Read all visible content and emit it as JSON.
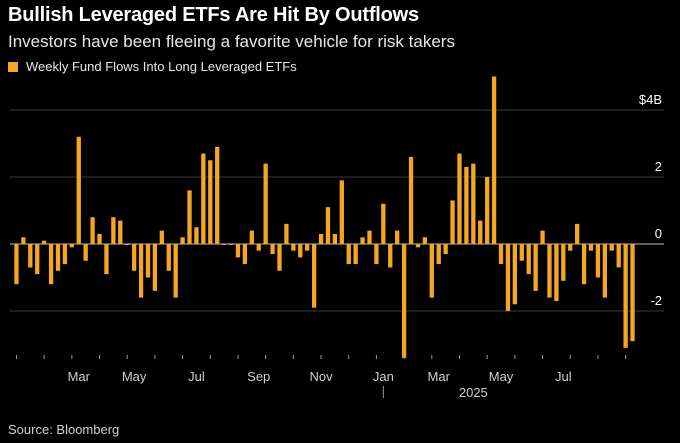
{
  "header": {
    "title": "Bullish Leveraged ETFs Are Hit By Outflows",
    "subtitle": "Investors have been fleeing a favorite vehicle for risk takers"
  },
  "footer": {
    "source": "Bloomberg",
    "source_label": "Source: Bloomberg"
  },
  "colors": {
    "bar": "#f5a623",
    "background": "#000000",
    "grid": "#3a3a3a",
    "axis": "#9a9a9a"
  },
  "chart_data": {
    "type": "bar",
    "title": "Bullish Leveraged ETFs Are Hit By Outflows",
    "subtitle": "Investors have been fleeing a favorite vehicle for risk takers",
    "legend": "top-left",
    "series": [
      {
        "name": "Weekly Fund Flows Into Long Leveraged ETFs",
        "values": [
          -1.2,
          0.2,
          -0.7,
          -0.9,
          0.1,
          -1.2,
          -0.8,
          -0.6,
          -0.1,
          3.2,
          -0.5,
          0.8,
          0.3,
          -0.9,
          0.8,
          0.7,
          0.0,
          -0.8,
          -1.6,
          -1.0,
          -1.4,
          0.4,
          -0.8,
          -1.6,
          0.2,
          1.6,
          0.5,
          2.7,
          2.5,
          2.9,
          0.0,
          0.0,
          -0.4,
          -0.6,
          0.4,
          -0.2,
          2.4,
          -0.3,
          -0.8,
          0.6,
          -0.2,
          -0.4,
          -0.2,
          -1.9,
          0.3,
          1.1,
          0.3,
          1.9,
          -0.6,
          -0.6,
          0.2,
          0.4,
          -0.6,
          1.2,
          -0.7,
          0.4,
          -3.4,
          2.6,
          -0.1,
          0.2,
          -1.6,
          -0.6,
          -0.3,
          1.3,
          2.7,
          2.3,
          2.4,
          0.7,
          2.0,
          5.0,
          -0.6,
          -2.0,
          -1.8,
          -0.5,
          -0.9,
          -1.4,
          0.4,
          -1.6,
          -1.7,
          -1.1,
          -0.2,
          0.6,
          -1.2,
          -0.2,
          -1.0,
          -1.6,
          -0.2,
          -0.7,
          -3.1,
          -2.9
        ]
      }
    ],
    "ylim": [
      -3.4,
      5.0
    ],
    "yticks": [
      {
        "value": 4,
        "label": "$4B"
      },
      {
        "value": 2,
        "label": "2"
      },
      {
        "value": 0,
        "label": "0"
      },
      {
        "value": -2,
        "label": "-2"
      }
    ],
    "xticks": [
      "Mar",
      "May",
      "Jul",
      "Sep",
      "Nov",
      "Jan",
      "Mar",
      "May",
      "Jul"
    ],
    "xtick_bar_index": [
      9,
      17,
      26,
      35,
      44,
      53,
      61,
      70,
      79
    ],
    "year_label": "2025",
    "year_bar_index": 66,
    "grid": true
  }
}
